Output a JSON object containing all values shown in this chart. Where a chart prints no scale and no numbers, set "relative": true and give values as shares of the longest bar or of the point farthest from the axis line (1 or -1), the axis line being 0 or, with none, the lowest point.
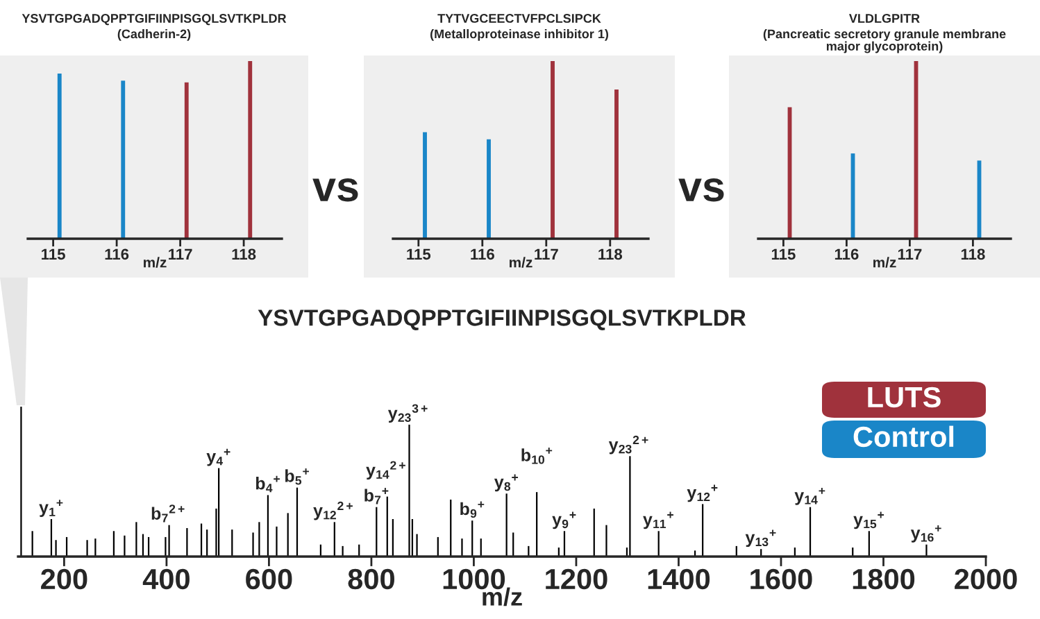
{
  "chart_data": [
    {
      "type": "bar",
      "title": "YSVTGPGADQPPTGIFIINPISGQLSVTKPLDR",
      "subtitle": "(Cadherin-2)",
      "xlabel": "m/z",
      "x": [
        115.1,
        116.1,
        117.1,
        118.1
      ],
      "relative": true,
      "xlim": [
        114.6,
        118.6
      ],
      "xticks": [
        115,
        116,
        117,
        118
      ],
      "annotations": [
        "vs"
      ],
      "series": [
        {
          "color": "#a0323c",
          "values": [
            null,
            null,
            0.88,
            1
          ]
        },
        {
          "color": "#1a86c8",
          "values": [
            0.93,
            0.89,
            null,
            null
          ]
        }
      ]
    },
    {
      "type": "bar",
      "title": "TYTVGCEECTVFPCLSIPCK",
      "subtitle": "(Metalloproteinase inhibitor 1)",
      "xlabel": "m/z",
      "x": [
        115.1,
        116.1,
        117.1,
        118.1
      ],
      "relative": true,
      "xlim": [
        114.6,
        118.6
      ],
      "xticks": [
        115,
        116,
        117,
        118
      ],
      "annotations": [
        "vs"
      ],
      "series": [
        {
          "color": "#a0323c",
          "values": [
            null,
            null,
            1,
            0.84
          ]
        },
        {
          "color": "#1a86c8",
          "values": [
            0.6,
            0.56,
            null,
            null
          ]
        }
      ]
    },
    {
      "type": "bar",
      "title": "VLDLGPITR",
      "subtitle": "(Pancreatic secretory granule membrane major glycoprotein)",
      "xlabel": "m/z",
      "x": [
        115.1,
        116.1,
        117.1,
        118.1
      ],
      "relative": true,
      "xlim": [
        114.6,
        118.6
      ],
      "xticks": [
        115,
        116,
        117,
        118
      ],
      "legend": "bottom",
      "series": [
        {
          "name": "LUTS",
          "color": "#a0323c",
          "values": [
            0.74,
            null,
            1,
            null
          ]
        },
        {
          "name": "Control",
          "color": "#1a86c8",
          "values": [
            null,
            0.48,
            null,
            0.44
          ]
        }
      ]
    },
    {
      "type": "bar",
      "title": "YSVTGPGADQPPTGIFIINPISGQLSVTKPLDR",
      "xlabel": "m/z",
      "relative": true,
      "xlim": [
        110,
        2000
      ],
      "xticks": [
        200,
        400,
        600,
        800,
        1000,
        1200,
        1400,
        1600,
        1800,
        2000
      ],
      "color": "#000000",
      "x": [
        116,
        138,
        175,
        184,
        205,
        245,
        261,
        297,
        318,
        341,
        354,
        365,
        398,
        405,
        440,
        468,
        479,
        497,
        502,
        528,
        569,
        581,
        598,
        615,
        637,
        655,
        701,
        728,
        744,
        776,
        810,
        831,
        842,
        874,
        880,
        889,
        930,
        955,
        977,
        997,
        1014,
        1064,
        1077,
        1107,
        1123,
        1166,
        1177,
        1235,
        1259,
        1299,
        1305,
        1361,
        1432,
        1447,
        1513,
        1561,
        1627,
        1657,
        1740,
        1772,
        1884
      ],
      "values": [
        1.0,
        0.17,
        0.25,
        0.11,
        0.13,
        0.11,
        0.12,
        0.17,
        0.14,
        0.23,
        0.15,
        0.13,
        0.13,
        0.21,
        0.19,
        0.22,
        0.18,
        0.32,
        0.59,
        0.18,
        0.16,
        0.23,
        0.41,
        0.2,
        0.29,
        0.46,
        0.08,
        0.23,
        0.07,
        0.08,
        0.33,
        0.4,
        0.25,
        0.88,
        0.25,
        0.15,
        0.13,
        0.38,
        0.12,
        0.24,
        0.12,
        0.42,
        0.16,
        0.07,
        0.43,
        0.06,
        0.17,
        0.32,
        0.21,
        0.06,
        0.67,
        0.17,
        0.04,
        0.35,
        0.07,
        0.05,
        0.06,
        0.33,
        0.06,
        0.17,
        0.08
      ],
      "annotations": [
        {
          "text": "y$_{1}$$^{+}$",
          "x": 175,
          "y": 0.25
        },
        {
          "text": "b$_{7}$$^{2+}$",
          "x": 405,
          "y": 0.21
        },
        {
          "text": "y$_{4}$$^{+}$",
          "x": 502,
          "y": 0.59
        },
        {
          "text": "b$_{4}$$^{+}$",
          "x": 598,
          "y": 0.41
        },
        {
          "text": "b$_{5}$$^{+}$",
          "x": 655,
          "y": 0.46
        },
        {
          "text": "y$_{12}$$^{2+}$",
          "x": 728,
          "y": 0.23
        },
        {
          "text": "b$_{7}$$^{+}$",
          "x": 810,
          "y": 0.33
        },
        {
          "text": "y$_{14}$$^{2+}$",
          "x": 831,
          "y": 0.4
        },
        {
          "text": "y$_{23}$$^{3+}$",
          "x": 874,
          "y": 0.88
        },
        {
          "text": "b$_{9}$$^{+}$",
          "x": 997,
          "y": 0.24
        },
        {
          "text": "y$_{8}$$^{+}$",
          "x": 1064,
          "y": 0.42
        },
        {
          "text": "b$_{10}$$^{+}$",
          "x": 1123,
          "y": 0.43
        },
        {
          "text": "y$_{9}$$^{+}$",
          "x": 1177,
          "y": 0.17
        },
        {
          "text": "y$_{23}$$^{2+}$",
          "x": 1305,
          "y": 0.67
        },
        {
          "text": "y$_{11}$$^{+}$",
          "x": 1361,
          "y": 0.17
        },
        {
          "text": "y$_{12}$$^{+}$",
          "x": 1447,
          "y": 0.35
        },
        {
          "text": "y$_{13}$$^{+}$",
          "x": 1561,
          "y": 0.05
        },
        {
          "text": "y$_{14}$$^{+}$",
          "x": 1657,
          "y": 0.33
        },
        {
          "text": "y$_{15}$$^{+}$",
          "x": 1772,
          "y": 0.17
        },
        {
          "text": "y$_{16}$$^{+}$",
          "x": 1884,
          "y": 0.08
        }
      ]
    }
  ]
}
